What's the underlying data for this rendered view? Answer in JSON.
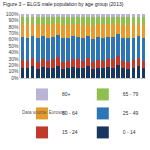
{
  "chart_data": {
    "type": "bar",
    "title": "Figure 3 – ELGS male population by age group (2013)",
    "stacked": true,
    "legend": "bottom",
    "tick_labels": "y",
    "grid": false,
    "annotations": [
      "Data source: Eurostat"
    ],
    "categories": [
      null,
      null,
      null,
      null,
      null,
      null,
      null,
      null,
      null,
      null,
      null,
      null,
      null,
      null,
      null,
      null,
      null,
      null,
      null,
      null,
      null,
      null,
      null,
      null,
      null
    ],
    "ylim": [
      0,
      100
    ],
    "yticks": [
      {
        "value": 0,
        "label": "0%"
      },
      {
        "value": 10,
        "label": "10%"
      },
      {
        "value": 20,
        "label": "20%"
      },
      {
        "value": 30,
        "label": "30%"
      },
      {
        "value": 40,
        "label": "40%"
      },
      {
        "value": 50,
        "label": "50%"
      },
      {
        "value": 60,
        "label": "60%"
      },
      {
        "value": 70,
        "label": "70%"
      },
      {
        "value": 80,
        "label": "80%"
      },
      {
        "value": 90,
        "label": "90%"
      },
      {
        "value": 100,
        "label": "100%"
      }
    ],
    "series": [
      {
        "name": "0 - 14",
        "color": "#17375e",
        "values": [
          16,
          15,
          18,
          14,
          17,
          15,
          16,
          19,
          14,
          15,
          17,
          16,
          15,
          18,
          14,
          16,
          15,
          17,
          16,
          20,
          15,
          14,
          16,
          18,
          15
        ]
      },
      {
        "name": "15 - 24",
        "color": "#c0392b",
        "values": [
          12,
          11,
          13,
          11,
          12,
          12,
          13,
          14,
          11,
          12,
          12,
          13,
          11,
          13,
          11,
          12,
          11,
          12,
          13,
          14,
          12,
          11,
          12,
          13,
          12
        ]
      },
      {
        "name": "25 - 49",
        "color": "#2e75b6",
        "values": [
          36,
          37,
          35,
          37,
          36,
          36,
          35,
          34,
          37,
          35,
          36,
          35,
          36,
          35,
          36,
          36,
          37,
          35,
          35,
          34,
          36,
          37,
          35,
          35,
          36
        ]
      },
      {
        "name": "50 - 64",
        "color": "#e69b2d",
        "values": [
          20,
          21,
          19,
          21,
          20,
          21,
          20,
          19,
          21,
          21,
          20,
          20,
          21,
          19,
          21,
          20,
          21,
          20,
          20,
          18,
          20,
          21,
          21,
          19,
          20
        ]
      },
      {
        "name": "65 - 79",
        "color": "#8fbf4d",
        "values": [
          12,
          12,
          11,
          13,
          11,
          12,
          12,
          10,
          13,
          13,
          11,
          12,
          13,
          11,
          13,
          12,
          12,
          12,
          12,
          10,
          13,
          13,
          12,
          11,
          13
        ]
      },
      {
        "name": "80+",
        "color": "#b9b3d6",
        "values": [
          4,
          4,
          4,
          4,
          4,
          4,
          4,
          4,
          4,
          4,
          4,
          4,
          4,
          4,
          5,
          4,
          4,
          4,
          4,
          4,
          4,
          4,
          4,
          4,
          4
        ]
      }
    ]
  }
}
